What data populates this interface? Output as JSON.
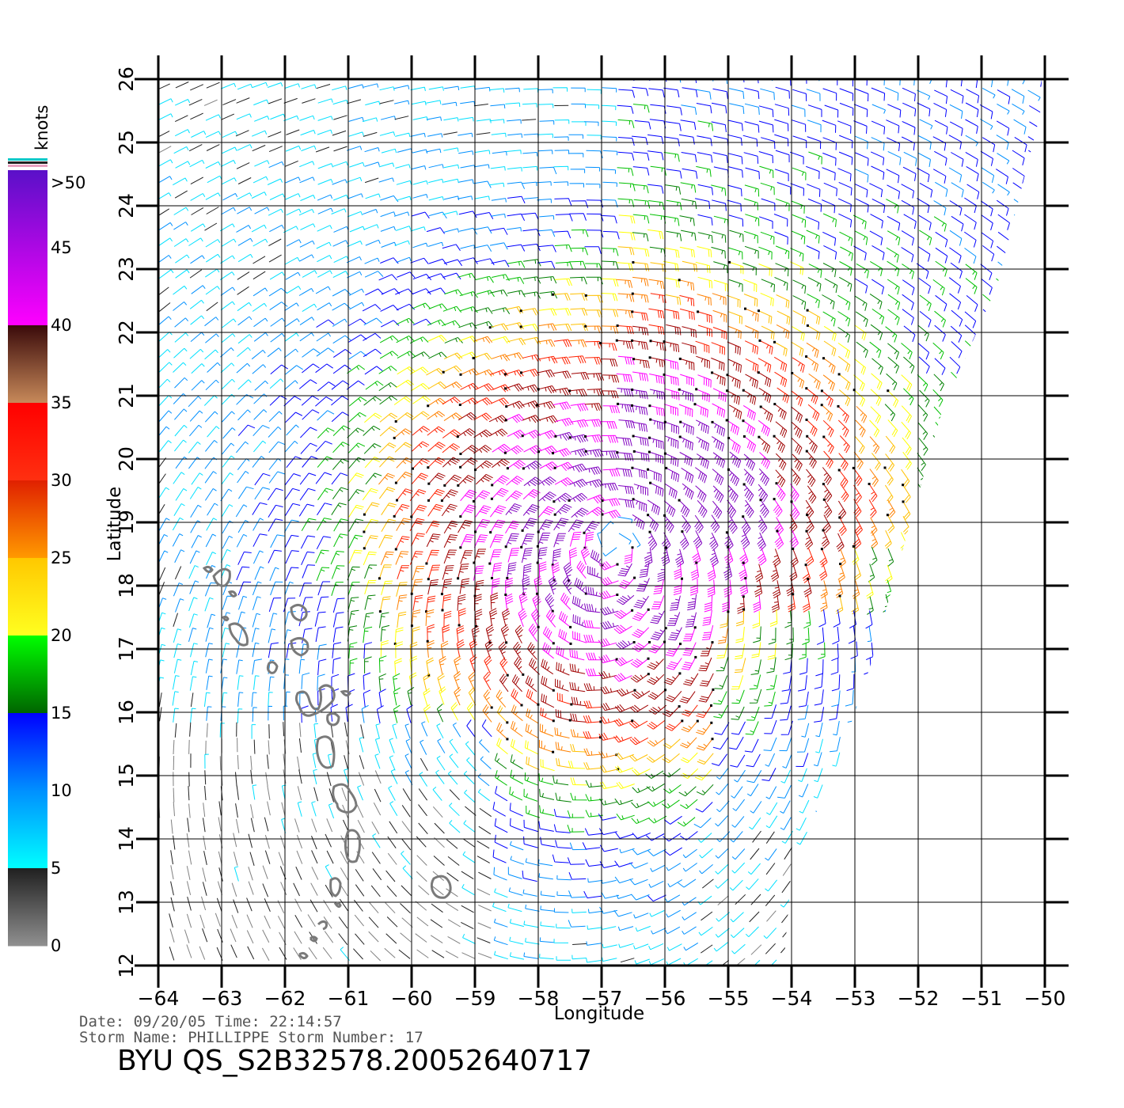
{
  "map": {
    "xlabel": "Longitude",
    "ylabel": "Latitude",
    "lon_range": [
      -64,
      -50
    ],
    "lat_range": [
      12,
      26
    ],
    "lon_ticks": [
      -64,
      -63,
      -62,
      -61,
      -60,
      -59,
      -58,
      -57,
      -56,
      -55,
      -54,
      -53,
      -52,
      -51,
      -50
    ],
    "lat_ticks": [
      12,
      13,
      14,
      15,
      16,
      17,
      18,
      19,
      20,
      21,
      22,
      23,
      24,
      25,
      26
    ],
    "lon_tick_labels": [
      "−64",
      "−63",
      "−62",
      "−61",
      "−60",
      "−59",
      "−58",
      "−57",
      "−56",
      "−55",
      "−54",
      "−53",
      "−52",
      "−51",
      "−50"
    ],
    "lat_tick_labels": [
      "12",
      "13",
      "14",
      "15",
      "16",
      "17",
      "18",
      "19",
      "20",
      "21",
      "22",
      "23",
      "24",
      "25",
      "26"
    ],
    "grid": true,
    "storm_center": {
      "lon": -56.8,
      "lat": 18.8
    }
  },
  "colorbar": {
    "title": "knots",
    "labels": [
      ">50",
      "45",
      "40",
      "35",
      "30",
      "25",
      "20",
      "15",
      "10",
      "5",
      "0"
    ],
    "bands": [
      {
        "from": 50,
        "to": 40,
        "top": "#5a10c8",
        "bottom": "#ff00ff"
      },
      {
        "from": 40,
        "to": 35,
        "top": "#3a0a0a",
        "bottom": "#c88a5a"
      },
      {
        "from": 35,
        "to": 30,
        "top": "#ff0000",
        "bottom": "#ff3010"
      },
      {
        "from": 30,
        "to": 25,
        "top": "#e02000",
        "bottom": "#ff9a00"
      },
      {
        "from": 25,
        "to": 20,
        "top": "#ffc800",
        "bottom": "#ffff20"
      },
      {
        "from": 20,
        "to": 15,
        "top": "#00ff00",
        "bottom": "#006400"
      },
      {
        "from": 15,
        "to": 10,
        "top": "#0000ff",
        "bottom": "#0090ff"
      },
      {
        "from": 10,
        "to": 5,
        "top": "#0090ff",
        "bottom": "#00ffff"
      },
      {
        "from": 5,
        "to": 0,
        "top": "#202020",
        "bottom": "#909090"
      }
    ]
  },
  "footer": {
    "date_line": "Date: 09/20/05   Time: 22:14:57",
    "storm_line": "Storm Name: PHILLIPPE   Storm Number: 17",
    "file_id": "BYU QS_S2B32578.20052640717"
  },
  "colors": {
    "grid": "#000000",
    "coast": "#7a7a7a",
    "speed_palette": [
      "#808080",
      "#202020",
      "#00e0ff",
      "#0090ff",
      "#0000ff",
      "#00c000",
      "#008000",
      "#ffff00",
      "#ffc000",
      "#ff8000",
      "#ff2000",
      "#a00000",
      "#ff00ff",
      "#8000c0"
    ]
  }
}
